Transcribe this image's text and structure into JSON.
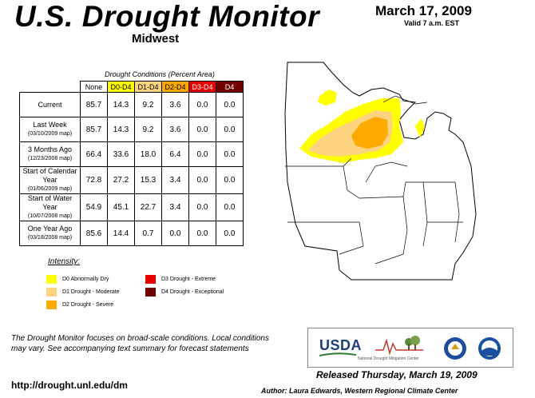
{
  "header": {
    "title": "U.S. Drought Monitor",
    "region": "Midwest",
    "date": "March 17, 2009",
    "valid": "Valid 7 a.m. EST"
  },
  "table": {
    "caption": "Drought Conditions (Percent Area)",
    "columns": [
      "None",
      "D0-D4",
      "D1-D4",
      "D2-D4",
      "D3-D4",
      "D4"
    ],
    "column_colors": [
      "#ffffff",
      "#ffff00",
      "#fcd37f",
      "#ffaa00",
      "#e60000",
      "#730000"
    ],
    "column_text_colors": [
      "#000000",
      "#000000",
      "#000000",
      "#000000",
      "#ffffff",
      "#ffffff"
    ],
    "rows": [
      {
        "label": "Current",
        "sub": "",
        "values": [
          "85.7",
          "14.3",
          "9.2",
          "3.6",
          "0.0",
          "0.0"
        ]
      },
      {
        "label": "Last Week",
        "sub": "(03/10/2009 map)",
        "values": [
          "85.7",
          "14.3",
          "9.2",
          "3.6",
          "0.0",
          "0.0"
        ]
      },
      {
        "label": "3 Months Ago",
        "sub": "(12/23/2008 map)",
        "values": [
          "66.4",
          "33.6",
          "18.0",
          "6.4",
          "0.0",
          "0.0"
        ]
      },
      {
        "label": "Start of Calendar Year",
        "sub": "(01/06/2009 map)",
        "values": [
          "72.8",
          "27.2",
          "15.3",
          "3.4",
          "0.0",
          "0.0"
        ]
      },
      {
        "label": "Start of Water Year",
        "sub": "(10/07/2008 map)",
        "values": [
          "54.9",
          "45.1",
          "22.7",
          "3.4",
          "0.0",
          "0.0"
        ]
      },
      {
        "label": "One Year Ago",
        "sub": "(03/18/2008 map)",
        "values": [
          "85.6",
          "14.4",
          "0.7",
          "0.0",
          "0.0",
          "0.0"
        ]
      }
    ]
  },
  "legend": {
    "title": "Intensity:",
    "items": [
      {
        "label": "D0 Abnormally Dry",
        "color": "#ffff00"
      },
      {
        "label": "D1 Drought - Moderate",
        "color": "#fcd37f"
      },
      {
        "label": "D2 Drought - Severe",
        "color": "#ffaa00"
      },
      {
        "label": "D3 Drought - Extreme",
        "color": "#e60000"
      },
      {
        "label": "D4 Drought - Exceptional",
        "color": "#730000"
      }
    ]
  },
  "footer": {
    "note": "The Drought Monitor focuses on broad-scale conditions. Local conditions may vary. See accompanying text summary for forecast statements",
    "url": "http://drought.unl.edu/dm",
    "released": "Released Thursday, March 19, 2009",
    "author": "Author: Laura Edwards, Western Regional Climate Center",
    "logo_usda": "USDA",
    "logo_ndmc": "National Drought Mitigation Center"
  }
}
